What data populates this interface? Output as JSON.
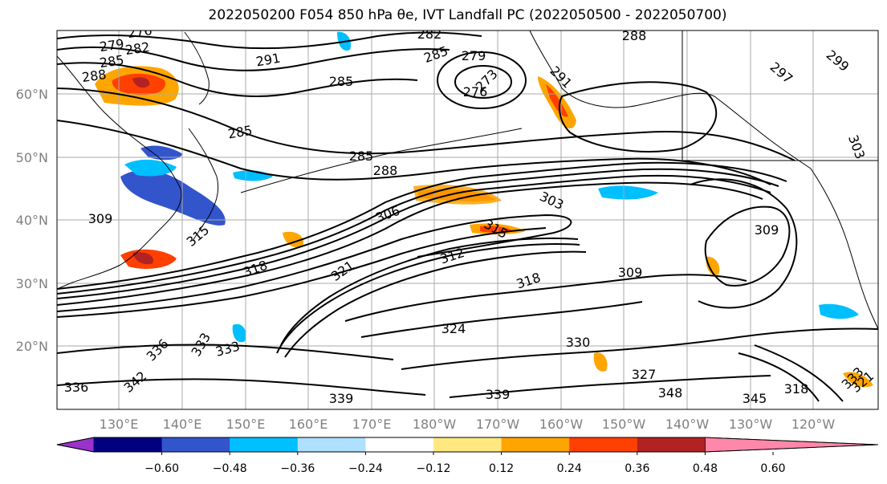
{
  "title": "2022050200 F054 850 hPa θe, IVT Landfall PC (2022050500 - 2022050700)",
  "map": {
    "lat_labels": [
      "60°N",
      "50°N",
      "40°N",
      "30°N",
      "20°N"
    ],
    "lon_labels": [
      "130°E",
      "140°E",
      "150°E",
      "160°E",
      "170°E",
      "180°W",
      "170°W",
      "160°W",
      "150°W",
      "140°W",
      "130°W",
      "120°W"
    ],
    "contour_labels": [
      "279",
      "276",
      "282",
      "285",
      "288",
      "291",
      "285",
      "282",
      "285",
      "279",
      "273",
      "276",
      "291",
      "288",
      "297",
      "299",
      "285",
      "285",
      "288",
      "306",
      "303",
      "315",
      "312",
      "318",
      "309",
      "309",
      "303",
      "309",
      "315",
      "318",
      "321",
      "324",
      "330",
      "327",
      "333",
      "333",
      "336",
      "333",
      "336",
      "342",
      "339",
      "339",
      "345",
      "348",
      "318",
      "321"
    ],
    "tick_color": "#808080",
    "grid": true
  },
  "colorbar": {
    "colors": [
      "#9933cc",
      "#000080",
      "#3355cc",
      "#00bfff",
      "#aee0ff",
      "#ffffff",
      "#ffe880",
      "#ffa500",
      "#ff4000",
      "#b22222",
      "#ff88aa"
    ],
    "tick_labels": [
      "−0.60",
      "−0.48",
      "−0.36",
      "−0.24",
      "−0.12",
      "0.12",
      "0.24",
      "0.36",
      "0.48",
      "0.60"
    ],
    "extend": "both"
  }
}
